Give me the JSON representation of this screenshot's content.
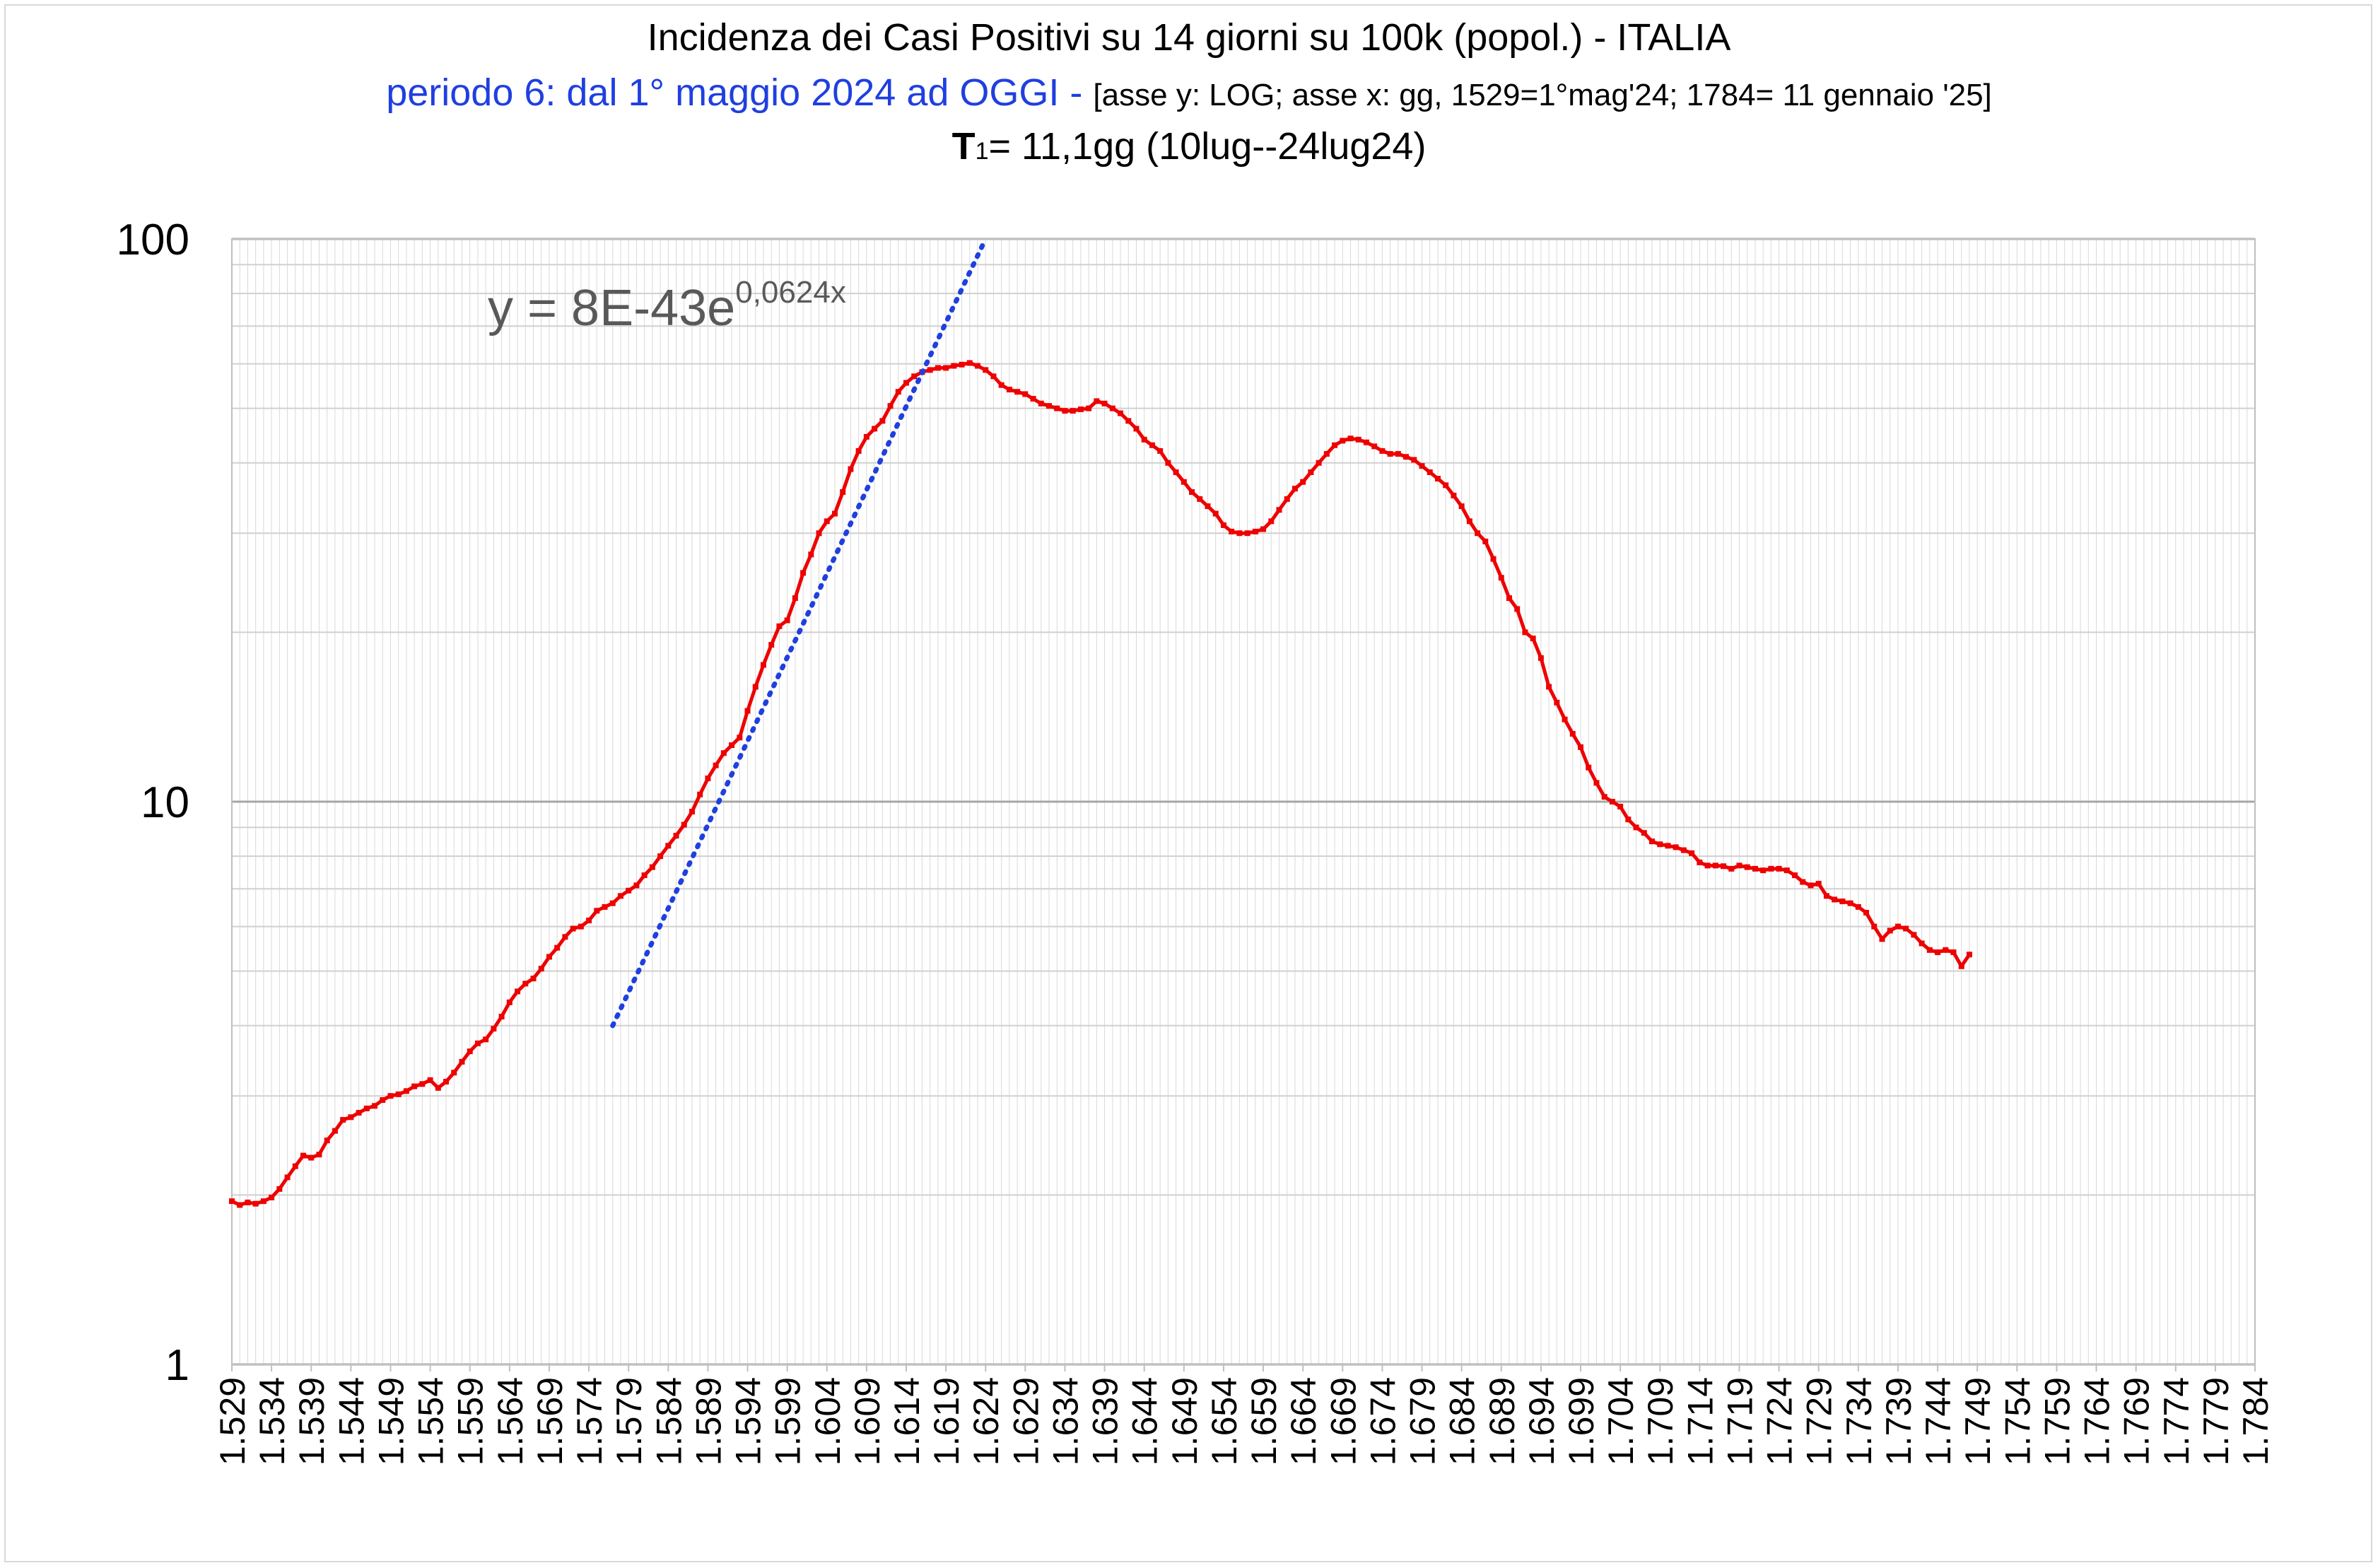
{
  "chart_data": {
    "type": "line",
    "title": "Incidenza dei Casi Positivi su 14 giorni su 100k (popol.) - ITALIA",
    "subtitle_blue": "periodo 6: dal 1° maggio 2024 ad OGGI -",
    "subtitle_axes": "[asse y: LOG; asse x: gg, 1529=1°mag'24; 1784= 11 gennaio '25]",
    "subtitle3_T": "T",
    "subtitle3_sub": "1",
    "subtitle3_rest": "= 11,1gg (10lug--24lug24)",
    "equation": "y = 8E-43e",
    "equation_exp": "0,0624x",
    "xlabel": "",
    "ylabel": "",
    "y_scale": "log",
    "ylim": [
      1,
      100
    ],
    "xlim": [
      1529,
      1784
    ],
    "y_tick_labels": [
      "1",
      "10",
      "100"
    ],
    "x_tick_labels": [
      "1.529",
      "1.534",
      "1.539",
      "1.544",
      "1.549",
      "1.554",
      "1.559",
      "1.564",
      "1.569",
      "1.574",
      "1.579",
      "1.584",
      "1.589",
      "1.594",
      "1.599",
      "1.604",
      "1.609",
      "1.614",
      "1.619",
      "1.624",
      "1.629",
      "1.634",
      "1.639",
      "1.644",
      "1.649",
      "1.654",
      "1.659",
      "1.664",
      "1.669",
      "1.674",
      "1.679",
      "1.684",
      "1.689",
      "1.694",
      "1.699",
      "1.704",
      "1.709",
      "1.714",
      "1.719",
      "1.724",
      "1.729",
      "1.734",
      "1.739",
      "1.744",
      "1.749",
      "1.754",
      "1.759",
      "1.764",
      "1.769",
      "1.774",
      "1.779",
      "1.784"
    ],
    "grid": true,
    "series": [
      {
        "name": "",
        "color": "#ee0000",
        "points": [
          [
            1529,
            1.95
          ],
          [
            1530,
            1.92
          ],
          [
            1531,
            1.94
          ],
          [
            1532,
            1.93
          ],
          [
            1533,
            1.95
          ],
          [
            1534,
            1.98
          ],
          [
            1535,
            2.05
          ],
          [
            1536,
            2.15
          ],
          [
            1537,
            2.25
          ],
          [
            1538,
            2.35
          ],
          [
            1539,
            2.33
          ],
          [
            1540,
            2.36
          ],
          [
            1541,
            2.5
          ],
          [
            1542,
            2.6
          ],
          [
            1543,
            2.72
          ],
          [
            1544,
            2.75
          ],
          [
            1545,
            2.8
          ],
          [
            1546,
            2.85
          ],
          [
            1547,
            2.88
          ],
          [
            1548,
            2.95
          ],
          [
            1549,
            3.0
          ],
          [
            1550,
            3.02
          ],
          [
            1551,
            3.06
          ],
          [
            1552,
            3.12
          ],
          [
            1553,
            3.15
          ],
          [
            1554,
            3.2
          ],
          [
            1555,
            3.1
          ],
          [
            1556,
            3.18
          ],
          [
            1557,
            3.3
          ],
          [
            1558,
            3.45
          ],
          [
            1559,
            3.6
          ],
          [
            1560,
            3.72
          ],
          [
            1561,
            3.78
          ],
          [
            1562,
            3.95
          ],
          [
            1563,
            4.15
          ],
          [
            1564,
            4.4
          ],
          [
            1565,
            4.6
          ],
          [
            1566,
            4.75
          ],
          [
            1567,
            4.85
          ],
          [
            1568,
            5.05
          ],
          [
            1569,
            5.3
          ],
          [
            1570,
            5.5
          ],
          [
            1571,
            5.75
          ],
          [
            1572,
            5.95
          ],
          [
            1573,
            6.0
          ],
          [
            1574,
            6.15
          ],
          [
            1575,
            6.4
          ],
          [
            1576,
            6.5
          ],
          [
            1577,
            6.6
          ],
          [
            1578,
            6.8
          ],
          [
            1579,
            6.95
          ],
          [
            1580,
            7.1
          ],
          [
            1581,
            7.4
          ],
          [
            1582,
            7.65
          ],
          [
            1583,
            8.0
          ],
          [
            1584,
            8.35
          ],
          [
            1585,
            8.7
          ],
          [
            1586,
            9.1
          ],
          [
            1587,
            9.6
          ],
          [
            1588,
            10.3
          ],
          [
            1589,
            11.0
          ],
          [
            1590,
            11.6
          ],
          [
            1591,
            12.2
          ],
          [
            1592,
            12.6
          ],
          [
            1593,
            13.0
          ],
          [
            1594,
            14.5
          ],
          [
            1595,
            16.0
          ],
          [
            1596,
            17.5
          ],
          [
            1597,
            19.0
          ],
          [
            1598,
            20.5
          ],
          [
            1599,
            21.0
          ],
          [
            1600,
            23.0
          ],
          [
            1601,
            25.5
          ],
          [
            1602,
            27.5
          ],
          [
            1603,
            30.0
          ],
          [
            1604,
            31.5
          ],
          [
            1605,
            32.5
          ],
          [
            1606,
            35.5
          ],
          [
            1607,
            39.0
          ],
          [
            1608,
            42.0
          ],
          [
            1609,
            44.5
          ],
          [
            1610,
            46.0
          ],
          [
            1611,
            47.5
          ],
          [
            1612,
            50.5
          ],
          [
            1613,
            53.5
          ],
          [
            1614,
            55.5
          ],
          [
            1615,
            57.0
          ],
          [
            1616,
            58.0
          ],
          [
            1617,
            58.5
          ],
          [
            1618,
            59.0
          ],
          [
            1619,
            59.0
          ],
          [
            1620,
            59.5
          ],
          [
            1621,
            59.8
          ],
          [
            1622,
            60.2
          ],
          [
            1623,
            59.5
          ],
          [
            1624,
            58.5
          ],
          [
            1625,
            57.0
          ],
          [
            1626,
            55.0
          ],
          [
            1627,
            54.0
          ],
          [
            1628,
            53.5
          ],
          [
            1629,
            53.0
          ],
          [
            1630,
            52.0
          ],
          [
            1631,
            51.0
          ],
          [
            1632,
            50.5
          ],
          [
            1633,
            50.0
          ],
          [
            1634,
            49.5
          ],
          [
            1635,
            49.5
          ],
          [
            1636,
            49.8
          ],
          [
            1637,
            50.0
          ],
          [
            1638,
            51.5
          ],
          [
            1639,
            51.0
          ],
          [
            1640,
            50.0
          ],
          [
            1641,
            49.0
          ],
          [
            1642,
            47.5
          ],
          [
            1643,
            46.0
          ],
          [
            1644,
            44.0
          ],
          [
            1645,
            43.0
          ],
          [
            1646,
            42.0
          ],
          [
            1647,
            40.0
          ],
          [
            1648,
            38.5
          ],
          [
            1649,
            37.0
          ],
          [
            1650,
            35.5
          ],
          [
            1651,
            34.5
          ],
          [
            1652,
            33.5
          ],
          [
            1653,
            32.5
          ],
          [
            1654,
            31.0
          ],
          [
            1655,
            30.2
          ],
          [
            1656,
            30.0
          ],
          [
            1657,
            30.0
          ],
          [
            1658,
            30.2
          ],
          [
            1659,
            30.5
          ],
          [
            1660,
            31.5
          ],
          [
            1661,
            33.0
          ],
          [
            1662,
            34.5
          ],
          [
            1663,
            36.0
          ],
          [
            1664,
            37.0
          ],
          [
            1665,
            38.5
          ],
          [
            1666,
            40.0
          ],
          [
            1667,
            41.5
          ],
          [
            1668,
            43.0
          ],
          [
            1669,
            43.8
          ],
          [
            1670,
            44.2
          ],
          [
            1671,
            44.0
          ],
          [
            1672,
            43.5
          ],
          [
            1673,
            42.8
          ],
          [
            1674,
            42.0
          ],
          [
            1675,
            41.5
          ],
          [
            1676,
            41.5
          ],
          [
            1677,
            41.0
          ],
          [
            1678,
            40.5
          ],
          [
            1679,
            39.5
          ],
          [
            1680,
            38.5
          ],
          [
            1681,
            37.5
          ],
          [
            1682,
            36.5
          ],
          [
            1683,
            35.0
          ],
          [
            1684,
            33.5
          ],
          [
            1685,
            31.5
          ],
          [
            1686,
            30.0
          ],
          [
            1687,
            29.0
          ],
          [
            1688,
            27.0
          ],
          [
            1689,
            25.0
          ],
          [
            1690,
            23.0
          ],
          [
            1691,
            22.0
          ],
          [
            1692,
            20.0
          ],
          [
            1693,
            19.5
          ],
          [
            1694,
            18.0
          ],
          [
            1695,
            16.0
          ],
          [
            1696,
            15.0
          ],
          [
            1697,
            14.0
          ],
          [
            1698,
            13.2
          ],
          [
            1699,
            12.5
          ],
          [
            1700,
            11.5
          ],
          [
            1701,
            10.8
          ],
          [
            1702,
            10.2
          ],
          [
            1703,
            10.0
          ],
          [
            1704,
            9.8
          ],
          [
            1705,
            9.3
          ],
          [
            1706,
            9.0
          ],
          [
            1707,
            8.8
          ],
          [
            1708,
            8.5
          ],
          [
            1709,
            8.4
          ],
          [
            1710,
            8.35
          ],
          [
            1711,
            8.3
          ],
          [
            1712,
            8.2
          ],
          [
            1713,
            8.1
          ],
          [
            1714,
            7.8
          ],
          [
            1715,
            7.7
          ],
          [
            1716,
            7.7
          ],
          [
            1717,
            7.68
          ],
          [
            1718,
            7.6
          ],
          [
            1719,
            7.7
          ],
          [
            1720,
            7.65
          ],
          [
            1721,
            7.6
          ],
          [
            1722,
            7.55
          ],
          [
            1723,
            7.6
          ],
          [
            1724,
            7.6
          ],
          [
            1725,
            7.55
          ],
          [
            1726,
            7.4
          ],
          [
            1727,
            7.2
          ],
          [
            1728,
            7.1
          ],
          [
            1729,
            7.15
          ],
          [
            1730,
            6.8
          ],
          [
            1731,
            6.7
          ],
          [
            1732,
            6.65
          ],
          [
            1733,
            6.6
          ],
          [
            1734,
            6.5
          ],
          [
            1735,
            6.35
          ],
          [
            1736,
            6.0
          ],
          [
            1737,
            5.7
          ],
          [
            1738,
            5.9
          ],
          [
            1739,
            6.0
          ],
          [
            1740,
            5.95
          ],
          [
            1741,
            5.8
          ],
          [
            1742,
            5.6
          ],
          [
            1743,
            5.45
          ],
          [
            1744,
            5.4
          ],
          [
            1745,
            5.45
          ],
          [
            1746,
            5.4
          ],
          [
            1747,
            5.1
          ],
          [
            1748,
            5.35
          ]
        ]
      },
      {
        "name": "",
        "type": "trendline",
        "color": "#1f3fe0",
        "points": [
          [
            1577,
            4.0
          ],
          [
            1624,
            100
          ]
        ]
      }
    ]
  }
}
